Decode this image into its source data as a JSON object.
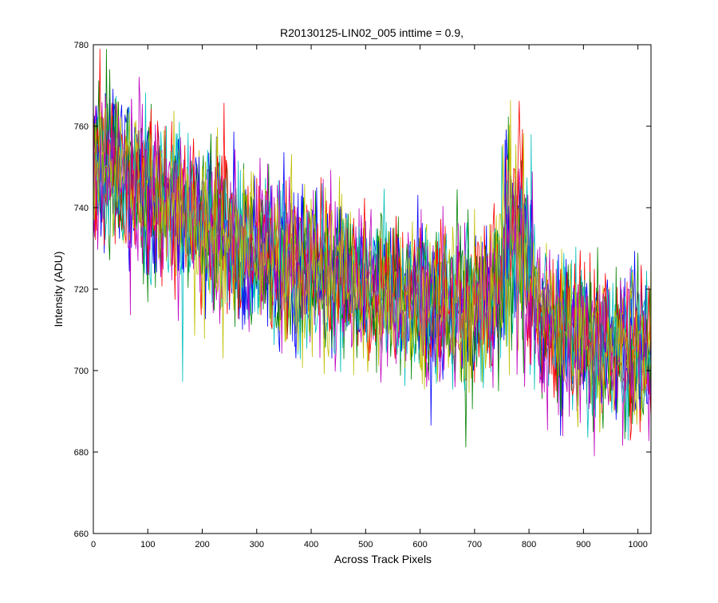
{
  "chart_data": {
    "type": "line",
    "title": "R20130125-LIN02_005 inttime = 0.9,",
    "xlabel": "Across Track Pixels",
    "ylabel": "Intensity (ADU)",
    "xlim": [
      0,
      1024
    ],
    "ylim": [
      660,
      780
    ],
    "xticks": [
      0,
      100,
      200,
      300,
      400,
      500,
      600,
      700,
      800,
      900,
      1000
    ],
    "yticks": [
      660,
      680,
      700,
      720,
      740,
      760,
      780
    ],
    "grid": false,
    "series_colors": [
      "#0000ff",
      "#008000",
      "#ff0000",
      "#00bfbf",
      "#bf00bf",
      "#bfbf00"
    ],
    "trend": {
      "x": [
        0,
        50,
        100,
        150,
        200,
        250,
        300,
        350,
        400,
        450,
        500,
        550,
        600,
        650,
        700,
        740,
        760,
        780,
        800,
        820,
        850,
        900,
        950,
        1000,
        1024
      ],
      "y": [
        750,
        749,
        744,
        740,
        736,
        733,
        729,
        726,
        724,
        722,
        720,
        719,
        717,
        716,
        715,
        718,
        730,
        733,
        724,
        713,
        710,
        708,
        706,
        705,
        704
      ]
    },
    "noise_half_range_adu": 12
  }
}
